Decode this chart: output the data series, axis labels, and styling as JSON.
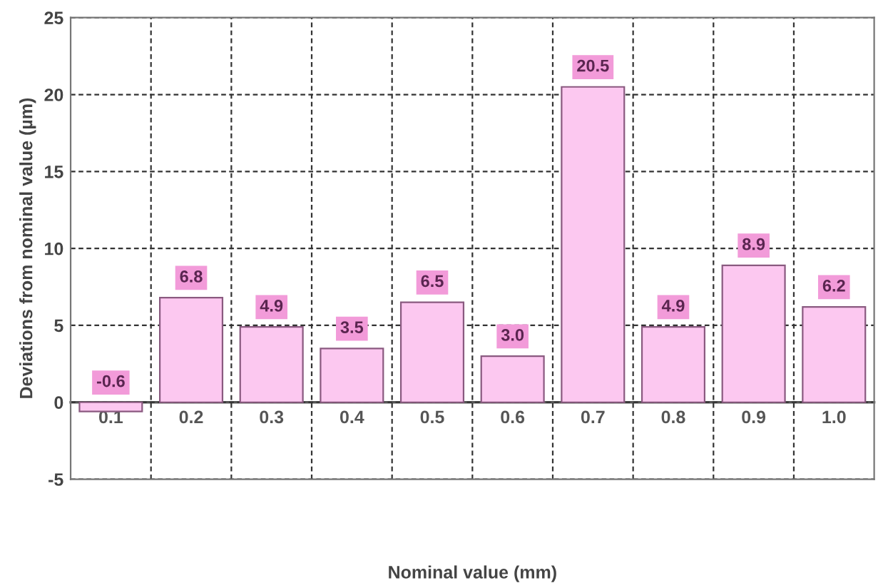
{
  "chart_data": {
    "type": "bar",
    "xlabel": "Nominal value (mm)",
    "ylabel": "Deviations from nominal value (µm)",
    "categories": [
      "0.1",
      "0.2",
      "0.3",
      "0.4",
      "0.5",
      "0.6",
      "0.7",
      "0.8",
      "0.9",
      "1.0"
    ],
    "values": [
      -0.6,
      6.8,
      4.9,
      3.5,
      6.5,
      3.0,
      20.5,
      4.9,
      8.9,
      6.2
    ],
    "color": "#fcc8f0",
    "ylim": [
      -5,
      25
    ],
    "yticks": [
      -5,
      0,
      5,
      10,
      15,
      20,
      25
    ],
    "value_labels": [
      "-0.6",
      "6.8",
      "4.9",
      "3.5",
      "6.5",
      "3.0",
      "20.5",
      "4.9",
      "8.9",
      "6.2"
    ],
    "grid": true
  }
}
